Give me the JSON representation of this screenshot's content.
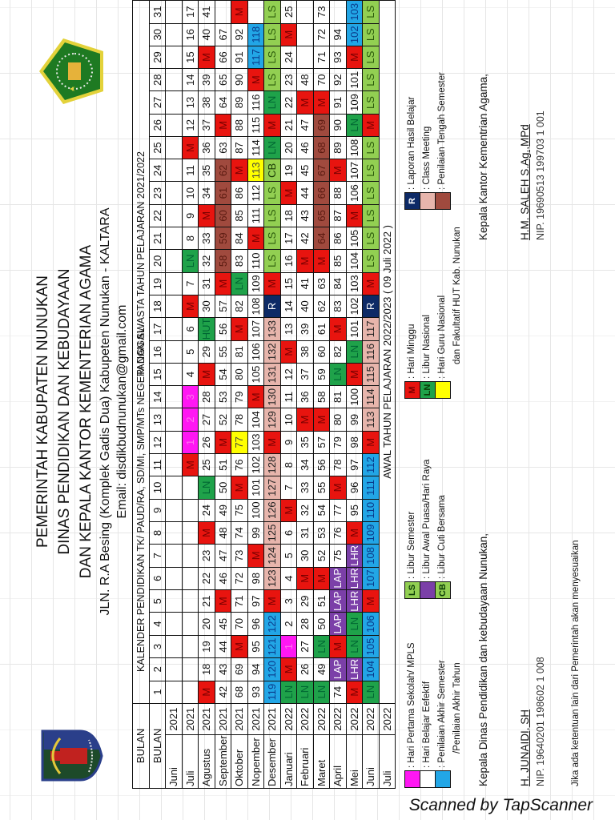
{
  "header": {
    "line1": "PEMERINTAH KABUPATEN NUNUKAN",
    "line2": "DINAS PENDIDIKAN DAN KEBUDAYAAN",
    "line3": "DAN KEPALA KANTOR KEMENTERIAN AGAMA",
    "address": "JLN. R.A Besing (Komplek Gadis Dua) Kabupeten Nunukan  - KALTARA",
    "email": "Email: disdikbudnunukan@gmail.com",
    "calendar_title": "KALENDER PENDIDIKAN TK/ PAUD/RA, SD/MI, SMP/MTs NEGERI DAN SWASTA  TAHUN PELAJARAN 2021/2022"
  },
  "table": {
    "bulan_label": "BULAN",
    "tanggal_label": "TANGGAL",
    "days": [
      "1",
      "2",
      "3",
      "4",
      "5",
      "6",
      "7",
      "8",
      "9",
      "10",
      "11",
      "12",
      "13",
      "14",
      "15",
      "16",
      "17",
      "18",
      "19",
      "20",
      "21",
      "22",
      "23",
      "24",
      "25",
      "26",
      "27",
      "28",
      "29",
      "30",
      "31"
    ],
    "months": [
      {
        "name": "Juni",
        "year": "2021",
        "cells": [
          "",
          "",
          "",
          "",
          "",
          "",
          "",
          "",
          "",
          "",
          "",
          "",
          "",
          "",
          "",
          "",
          "",
          "",
          "",
          "",
          "",
          "",
          "",
          "",
          "",
          "",
          "",
          "",
          "",
          "",
          ""
        ]
      },
      {
        "name": "Juli",
        "year": "2021",
        "cells": [
          "",
          "",
          "",
          "",
          "",
          "",
          "",
          "",
          "",
          "",
          "M",
          "1",
          "2",
          "3",
          "4",
          "5",
          "6",
          "M",
          "7",
          "LN",
          "8",
          "9",
          "10",
          "11",
          "M",
          "12",
          "13",
          "14",
          "15",
          "16",
          "17"
        ]
      },
      {
        "name": "Agustus",
        "year": "2021",
        "cells": [
          "M",
          "18",
          "19",
          "20",
          "21",
          "22",
          "23",
          "M",
          "24",
          "LN",
          "25",
          "26",
          "27",
          "28",
          "M",
          "29",
          "HUT",
          "30",
          "31",
          "32",
          "33",
          "M",
          "34",
          "35",
          "36",
          "37",
          "38",
          "39",
          "M",
          "40",
          "41"
        ]
      },
      {
        "name": "September",
        "year": "2021",
        "cells": [
          "42",
          "43",
          "44",
          "45",
          "M",
          "46",
          "47",
          "48",
          "49",
          "50",
          "51",
          "M",
          "52",
          "53",
          "54",
          "55",
          "56",
          "57",
          "M",
          "58",
          "59",
          "60",
          "61",
          "62",
          "63",
          "M",
          "64",
          "65",
          "66",
          "67",
          ""
        ]
      },
      {
        "name": "Oktober",
        "year": "2021",
        "cells": [
          "68",
          "69",
          "M",
          "70",
          "71",
          "72",
          "73",
          "74",
          "75",
          "M",
          "76",
          "77",
          "78",
          "79",
          "80",
          "81",
          "M",
          "82",
          "LN",
          "83",
          "84",
          "85",
          "86",
          "M",
          "87",
          "88",
          "89",
          "90",
          "91",
          "92",
          "M"
        ]
      },
      {
        "name": "Nopember",
        "year": "2021",
        "cells": [
          "93",
          "94",
          "95",
          "96",
          "97",
          "98",
          "M",
          "99",
          "100",
          "101",
          "102",
          "103",
          "104",
          "M",
          "105",
          "106",
          "107",
          "108",
          "109",
          "110",
          "M",
          "111",
          "112",
          "113",
          "114",
          "115",
          "116",
          "M",
          "117",
          "118",
          ""
        ]
      },
      {
        "name": "Desember",
        "year": "2021",
        "cells": [
          "119",
          "120",
          "121",
          "122",
          "M",
          "123",
          "124",
          "125",
          "126",
          "127",
          "128",
          "M",
          "129",
          "130",
          "131",
          "132",
          "133",
          "R",
          "M",
          "LS",
          "LS",
          "LS",
          "LS",
          "CB",
          "LN",
          "M",
          "LN",
          "LS",
          "LS",
          "LS",
          "LS"
        ]
      },
      {
        "name": "Januari",
        "year": "2022",
        "cells": [
          "LN",
          "M",
          "1",
          "2",
          "3",
          "4",
          "5",
          "6",
          "M",
          "7",
          "8",
          "9",
          "10",
          "11",
          "12",
          "M",
          "13",
          "14",
          "15",
          "16",
          "17",
          "18",
          "M",
          "19",
          "20",
          "21",
          "22",
          "23",
          "24",
          "M",
          "25"
        ]
      },
      {
        "name": "Februari",
        "year": "2022",
        "cells": [
          "LN",
          "26",
          "27",
          "28",
          "29",
          "M",
          "30",
          "31",
          "32",
          "33",
          "34",
          "35",
          "M",
          "36",
          "37",
          "38",
          "39",
          "40",
          "41",
          "M",
          "42",
          "43",
          "44",
          "45",
          "46",
          "47",
          "M",
          "48",
          "",
          "",
          ""
        ]
      },
      {
        "name": "Maret",
        "year": "2022",
        "cells": [
          "LN",
          "49",
          "LN",
          "50",
          "51",
          "M",
          "52",
          "53",
          "54",
          "55",
          "56",
          "57",
          "M",
          "58",
          "59",
          "60",
          "61",
          "62",
          "63",
          "M",
          "64",
          "65",
          "66",
          "67",
          "68",
          "69",
          "M",
          "70",
          "71",
          "72",
          "73"
        ]
      },
      {
        "name": "April",
        "year": "2022",
        "cells": [
          "74",
          "LAP",
          "M",
          "LAP",
          "LAP",
          "LAP",
          "75",
          "76",
          "77",
          "M",
          "78",
          "79",
          "80",
          "81",
          "LN",
          "82",
          "M",
          "83",
          "84",
          "85",
          "86",
          "87",
          "88",
          "M",
          "89",
          "90",
          "91",
          "92",
          "93",
          "94",
          ""
        ]
      },
      {
        "name": "Mei",
        "year": "2022",
        "cells": [
          "M",
          "LHR",
          "LN",
          "LN",
          "LHR",
          "LHR",
          "LHR",
          "M",
          "95",
          "96",
          "97",
          "98",
          "99",
          "100",
          "M",
          "LN",
          "101",
          "102",
          "103",
          "104",
          "105",
          "M",
          "106",
          "107",
          "108",
          "LN",
          "109",
          "101",
          "M",
          "102",
          "103"
        ]
      },
      {
        "name": "Juni",
        "year": "2022",
        "cells": [
          "LN",
          "104",
          "105",
          "106",
          "M",
          "107",
          "108",
          "109",
          "110",
          "111",
          "112",
          "M",
          "113",
          "114",
          "115",
          "116",
          "117",
          "R",
          "M",
          "LS",
          "LS",
          "LS",
          "LS",
          "LS",
          "LS",
          "M",
          "LS",
          "LS",
          "LS",
          "LS",
          "LS"
        ]
      },
      {
        "name": "Juli",
        "year": "2022",
        "cells": []
      }
    ],
    "special_colors": {
      "1-11": "pink",
      "1-12": "pink",
      "1-13": "pink",
      "4-11": "yellow",
      "3-19": "pts",
      "3-20": "pts",
      "3-21": "pts",
      "3-22": "pts",
      "3-23": "pts",
      "5-23": "yellow",
      "5-28": "blue",
      "5-29": "blue",
      "6-0": "blue",
      "6-1": "blue",
      "6-2": "blue",
      "6-3": "blue",
      "6-5": "cm",
      "6-6": "cm",
      "6-7": "cm",
      "6-8": "cm",
      "6-9": "cm",
      "6-10": "cm",
      "6-12": "cm",
      "6-13": "cm",
      "6-14": "cm",
      "6-15": "cm",
      "6-16": "cm",
      "7-2": "pink",
      "9-23": "pts",
      "9-24": "pts",
      "9-25": "pts",
      "9-20": "pts",
      "9-21": "pts",
      "9-22": "pts",
      "11-29": "blue",
      "11-30": "blue",
      "12-1": "blue",
      "12-2": "blue",
      "12-3": "blue",
      "12-5": "blue",
      "12-6": "blue",
      "12-7": "blue",
      "12-8": "blue",
      "12-9": "blue",
      "12-10": "blue",
      "12-12": "cm",
      "12-13": "cm",
      "12-14": "cm",
      "12-15": "cm",
      "12-16": "cm"
    },
    "awal_tahun": "AWAL TAHUN PELAJARAN  2022/2023 ( 09 Juli 2022 )"
  },
  "legend": {
    "group1": [
      {
        "swatch": "",
        "color": "#ff17f3",
        "label": ": Hari Pertama Sekolah/ MPLS"
      },
      {
        "swatch": "",
        "color": "#ffffff",
        "label": ": Hari Belajar Eefektif"
      },
      {
        "swatch": "",
        "color": "#22a6e6",
        "label": ": Penilaian Akhir Semester"
      }
    ],
    "group1_extra": "/Penilaian Akhir Tahun",
    "group2": [
      {
        "swatch": "LS",
        "color": "#92cf52",
        "label": ": Libur Semester"
      },
      {
        "swatch": "",
        "color": "#7b3fa8",
        "label": ": Libur Awal Puasa/Hari Raya"
      },
      {
        "swatch": "CB",
        "color": "#92cf52",
        "label": ": Libur Cuti Bersama"
      }
    ],
    "group3": [
      {
        "swatch": "M",
        "color": "#e8140f",
        "label": ": Hari Minggu"
      },
      {
        "swatch": "LN",
        "color": "#1fa24a",
        "label": ": Libur Nasional"
      },
      {
        "swatch": "",
        "color": "#ffff00",
        "label": ": Hari Guru Nasional"
      }
    ],
    "group3_extra": "dan Fakultatif HUT Kab. Nunukan",
    "group4": [
      {
        "swatch": "R",
        "color": "#0d2a66",
        "label": ": Laporan Hasil Belajar"
      },
      {
        "swatch": "",
        "color": "#e7b5ac",
        "label": ": Class Meeting"
      },
      {
        "swatch": "",
        "color": "#a04a3e",
        "label": ": Penilaian Tengah Semester"
      }
    ]
  },
  "signatures": {
    "left": {
      "title": "Kepala Dinas Pendidikan dan kebudayaan Nunukan,",
      "name": "H. JUNAIDI, SH",
      "nip": "NIP. 19640201 198602 1 008"
    },
    "right": {
      "title": "Kepala Kantor Kementrian Agama,",
      "name": "H.M. SALEH S.Ag.,MPd",
      "nip": "NIP. 19690513 199703 1 001"
    }
  },
  "note": "Jika ada ketentuan lain dari Pemerintah akan menyesuaikan",
  "watermark": "Scanned by TapScanner"
}
